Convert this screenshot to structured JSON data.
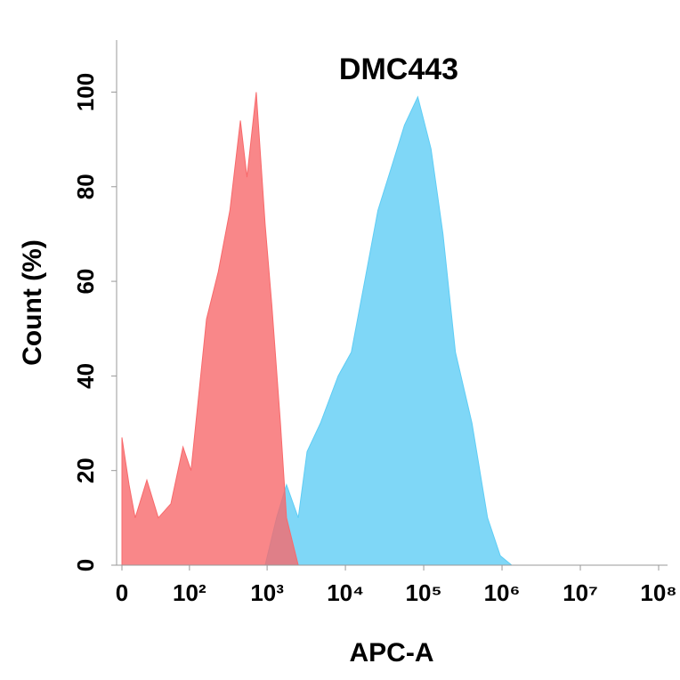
{
  "chart_data": {
    "type": "area",
    "title": "DMC443",
    "x_label": "APC-A",
    "y_label": "Count  (%)",
    "xscale": "asinh",
    "xscale_cofactor": 28,
    "xlim": [
      0,
      100000000
    ],
    "xticks": [
      0,
      {
        "value": 100,
        "label": "10²"
      },
      {
        "value": 1000,
        "label": "10³"
      },
      {
        "value": 10000,
        "label": "10⁴"
      },
      {
        "value": 100000,
        "label": "10⁵"
      },
      {
        "value": 1000000,
        "label": "10⁶"
      },
      {
        "value": 10000000,
        "label": "10⁷"
      },
      {
        "value": 100000000,
        "label": "10⁸"
      }
    ],
    "ylim": [
      0,
      111
    ],
    "yticks": [
      0,
      20,
      40,
      60,
      80,
      100
    ],
    "series": [
      {
        "color": "#f8696b",
        "x": [
          0,
          5.9,
          11.2,
          22.4,
          36,
          55.7,
          82,
          105,
          167,
          237,
          334,
          455,
          553,
          727,
          945,
          1150,
          1480,
          1770,
          2500
        ],
        "values": [
          27,
          17,
          10,
          18,
          10,
          13,
          25,
          20,
          52,
          62,
          75,
          94,
          82,
          100,
          72,
          55,
          30,
          10,
          0
        ]
      },
      {
        "color": "#5fcdf5",
        "x": [
          945,
          1320,
          1770,
          2500,
          3240,
          4800,
          8070,
          11900,
          17600,
          26000,
          38500,
          56800,
          84000,
          124000,
          176000,
          254000,
          413000,
          654000,
          950000,
          1330000
        ],
        "values": [
          0,
          10,
          17,
          10,
          24,
          30,
          40,
          45,
          60,
          75,
          84,
          93,
          99,
          88,
          70,
          45,
          30,
          10,
          2,
          0
        ]
      }
    ]
  }
}
